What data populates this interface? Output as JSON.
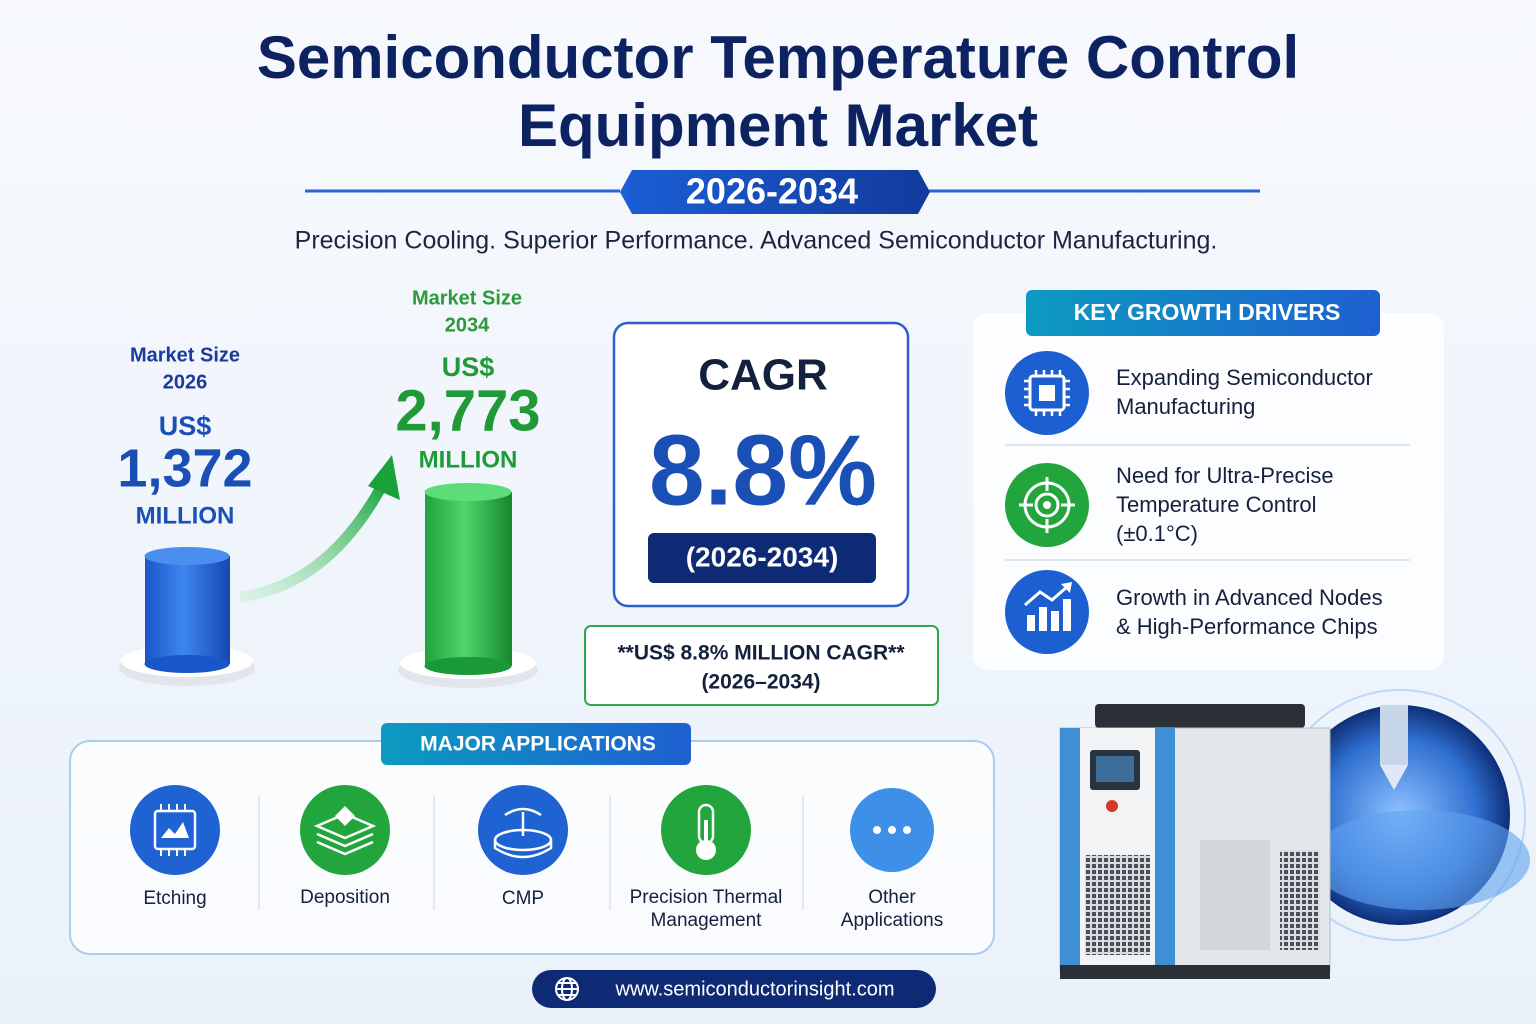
{
  "header": {
    "title_lines": [
      "Semiconductor Temperature Control",
      "Equipment Market"
    ],
    "period": "2026-2034",
    "tagline": "Precision Cooling. Superior Performance. Advanced Semiconductor Manufacturing."
  },
  "market_size": [
    {
      "label_lines": [
        "Market Size",
        "2026"
      ],
      "currency": "US$",
      "value": "1,372",
      "unit": "MILLION"
    },
    {
      "label_lines": [
        "Market Size",
        "2034"
      ],
      "currency": "US$",
      "value": "2,773",
      "unit": "MILLION"
    }
  ],
  "cagr": {
    "label": "CAGR",
    "value": "8.8%",
    "period": "(2026-2034)",
    "note_lines": [
      "**US$ 8.8% MILLION CAGR**",
      "(2026–2034)"
    ]
  },
  "drivers": {
    "title": "KEY GROWTH DRIVERS",
    "items": [
      [
        "Expanding Semiconductor",
        "Manufacturing"
      ],
      [
        "Need for Ultra-Precise",
        "Temperature Control",
        "(±0.1°C)"
      ],
      [
        "Growth in Advanced Nodes",
        "& High-Performance Chips"
      ]
    ]
  },
  "applications": {
    "title": "MAJOR APPLICATIONS",
    "items": [
      [
        "Etching"
      ],
      [
        "Deposition"
      ],
      [
        "CMP"
      ],
      [
        "Precision Thermal",
        "Management"
      ],
      [
        "Other",
        "Applications"
      ]
    ]
  },
  "footer": {
    "url": "www.semiconductorinsight.com"
  }
}
